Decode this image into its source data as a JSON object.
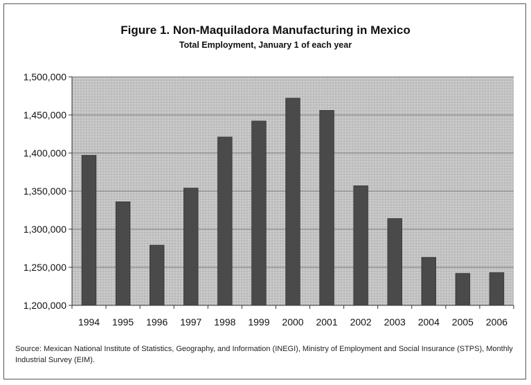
{
  "chart_data": {
    "type": "bar",
    "title": "Figure 1. Non-Maquiladora Manufacturing in Mexico",
    "subtitle": "Total Employment, January 1 of each year",
    "categories": [
      "1994",
      "1995",
      "1996",
      "1997",
      "1998",
      "1999",
      "2000",
      "2001",
      "2002",
      "2003",
      "2004",
      "2005",
      "2006"
    ],
    "values": [
      1397000,
      1336000,
      1279000,
      1354000,
      1421000,
      1442000,
      1472000,
      1456000,
      1357000,
      1314000,
      1263000,
      1242000,
      1243000
    ],
    "ylim": [
      1200000,
      1500000
    ],
    "yticks": [
      "1,200,000",
      "1,250,000",
      "1,300,000",
      "1,350,000",
      "1,400,000",
      "1,450,000",
      "1,500,000"
    ],
    "ytick_values": [
      1200000,
      1250000,
      1300000,
      1350000,
      1400000,
      1450000,
      1500000
    ],
    "xlabel": "",
    "ylabel": "",
    "grid": true,
    "bar_color": "#4a4a4a",
    "plot_background": "#c4c4c4",
    "gridline_color": "#7a7a7a"
  },
  "source_note": "Source: Mexican National Institute of Statistics, Geography, and Information (INEGI), Ministry of Employment and Social Insurance (STPS), Monthly Industrial Survey (EIM)."
}
